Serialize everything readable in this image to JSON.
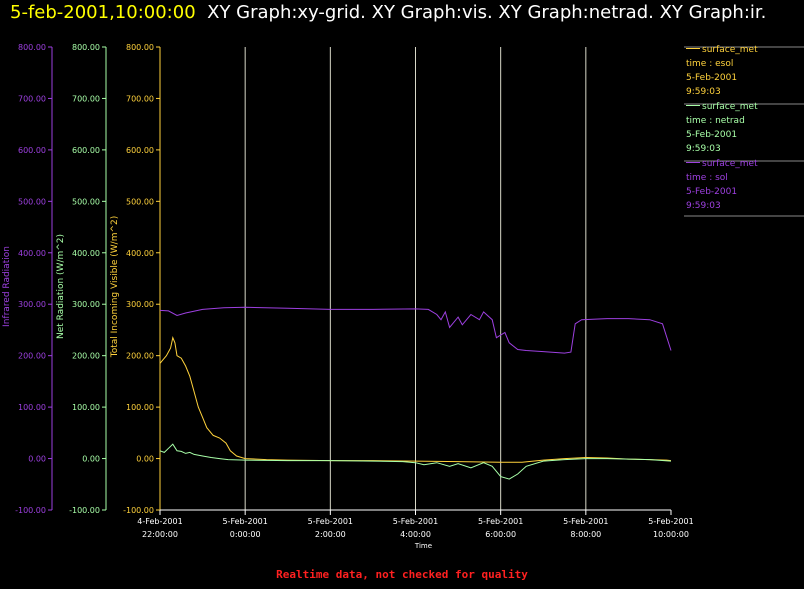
{
  "header": {
    "date_time": "5-feb-2001,10:00:00",
    "graphs": "XY Graph:xy-grid.  XY Graph:vis.  XY Graph:netrad.  XY Graph:ir."
  },
  "footer": {
    "notice": "Realtime data, not checked for quality"
  },
  "colors": {
    "ir": "#9d40e0",
    "netrad": "#a8ffa8",
    "vis": "#ffd23c",
    "grid": "#d8d8c8",
    "axis_time": "#ffffff"
  },
  "legend": [
    {
      "name": "surface_met",
      "lines": [
        "time : esol",
        "5-Feb-2001",
        "9:59:03"
      ],
      "color": "#ffd23c"
    },
    {
      "name": "surface_met",
      "lines": [
        "time : netrad",
        "5-Feb-2001",
        "9:59:03"
      ],
      "color": "#a8ffa8"
    },
    {
      "name": "surface_met",
      "lines": [
        "time : sol",
        "5-Feb-2001",
        "9:59:03"
      ],
      "color": "#9d40e0"
    }
  ],
  "chart_data": {
    "type": "line",
    "title": "",
    "xlabel": "Time",
    "x_ticks": [
      {
        "l1": "4-Feb-2001",
        "l2": "22:00:00",
        "h": -2
      },
      {
        "l1": "5-Feb-2001",
        "l2": "0:00:00",
        "h": 0
      },
      {
        "l1": "5-Feb-2001",
        "l2": "2:00:00",
        "h": 2
      },
      {
        "l1": "5-Feb-2001",
        "l2": "4:00:00",
        "h": 4
      },
      {
        "l1": "5-Feb-2001",
        "l2": "6:00:00",
        "h": 6
      },
      {
        "l1": "5-Feb-2001",
        "l2": "8:00:00",
        "h": 8
      },
      {
        "l1": "5-Feb-2001",
        "l2": "10:00:00",
        "h": 10
      }
    ],
    "xlim_hours": [
      -2,
      10
    ],
    "y_axes": [
      {
        "key": "ir",
        "label": "Infrared Radiation",
        "ylim": [
          -100,
          800
        ],
        "ticks": [
          "800.00",
          "700.00",
          "600.00",
          "500.00",
          "400.00",
          "300.00",
          "200.00",
          "100.00",
          "0.00",
          "-100.00"
        ]
      },
      {
        "key": "netrad",
        "label": "Net Radiation (W/m^2)",
        "ylim": [
          -100,
          800
        ],
        "ticks": [
          "800.00",
          "700.00",
          "600.00",
          "500.00",
          "400.00",
          "300.00",
          "200.00",
          "100.00",
          "0.00",
          "-100.00"
        ]
      },
      {
        "key": "vis",
        "label": "Total Incoming Visible (W/m^2)",
        "ylim": [
          -100,
          800
        ],
        "ticks": [
          "800.00",
          "700.00",
          "600.00",
          "500.00",
          "400.00",
          "300.00",
          "200.00",
          "100.00",
          "0.00",
          "-100.00"
        ]
      }
    ],
    "grid": true,
    "legend_position": "right",
    "series": [
      {
        "key": "vis",
        "name": "surface_met esol",
        "points": [
          [
            -2,
            185
          ],
          [
            -1.95,
            190
          ],
          [
            -1.85,
            200
          ],
          [
            -1.75,
            215
          ],
          [
            -1.7,
            235
          ],
          [
            -1.65,
            225
          ],
          [
            -1.6,
            200
          ],
          [
            -1.5,
            195
          ],
          [
            -1.4,
            180
          ],
          [
            -1.3,
            160
          ],
          [
            -1.2,
            130
          ],
          [
            -1.1,
            100
          ],
          [
            -1.0,
            80
          ],
          [
            -0.9,
            60
          ],
          [
            -0.75,
            45
          ],
          [
            -0.6,
            40
          ],
          [
            -0.45,
            30
          ],
          [
            -0.35,
            15
          ],
          [
            -0.2,
            5
          ],
          [
            0,
            0
          ],
          [
            0.5,
            -2
          ],
          [
            1,
            -3
          ],
          [
            2,
            -4
          ],
          [
            3,
            -4
          ],
          [
            4,
            -5
          ],
          [
            5,
            -6
          ],
          [
            6,
            -7
          ],
          [
            6.5,
            -7
          ],
          [
            7,
            -3
          ],
          [
            7.5,
            0
          ],
          [
            8,
            2
          ],
          [
            8.5,
            1
          ],
          [
            9,
            -1
          ],
          [
            9.5,
            -2
          ],
          [
            9.9,
            -3
          ],
          [
            10,
            -4
          ]
        ]
      },
      {
        "key": "netrad",
        "name": "surface_met netrad",
        "points": [
          [
            -2,
            15
          ],
          [
            -1.9,
            12
          ],
          [
            -1.8,
            20
          ],
          [
            -1.7,
            28
          ],
          [
            -1.6,
            15
          ],
          [
            -1.5,
            14
          ],
          [
            -1.4,
            10
          ],
          [
            -1.3,
            12
          ],
          [
            -1.2,
            8
          ],
          [
            -1.0,
            5
          ],
          [
            -0.8,
            2
          ],
          [
            -0.6,
            0
          ],
          [
            -0.4,
            -2
          ],
          [
            0,
            -3
          ],
          [
            1,
            -4
          ],
          [
            2,
            -4
          ],
          [
            3,
            -5
          ],
          [
            3.7,
            -6
          ],
          [
            4,
            -8
          ],
          [
            4.2,
            -12
          ],
          [
            4.5,
            -8
          ],
          [
            4.8,
            -15
          ],
          [
            5,
            -10
          ],
          [
            5.3,
            -18
          ],
          [
            5.6,
            -8
          ],
          [
            5.8,
            -15
          ],
          [
            6,
            -35
          ],
          [
            6.2,
            -40
          ],
          [
            6.4,
            -30
          ],
          [
            6.6,
            -15
          ],
          [
            7,
            -5
          ],
          [
            7.5,
            -2
          ],
          [
            8,
            0
          ],
          [
            8.5,
            0
          ],
          [
            9,
            -1
          ],
          [
            9.5,
            -2
          ],
          [
            10,
            -5
          ]
        ]
      },
      {
        "key": "ir",
        "name": "surface_met sol",
        "points": [
          [
            -2,
            288
          ],
          [
            -1.8,
            287
          ],
          [
            -1.6,
            278
          ],
          [
            -1.4,
            283
          ],
          [
            -1.0,
            290
          ],
          [
            -0.5,
            293
          ],
          [
            0,
            294
          ],
          [
            1,
            292
          ],
          [
            2,
            290
          ],
          [
            3,
            290
          ],
          [
            4,
            291
          ],
          [
            4.3,
            290
          ],
          [
            4.5,
            280
          ],
          [
            4.6,
            270
          ],
          [
            4.7,
            285
          ],
          [
            4.8,
            255
          ],
          [
            5.0,
            275
          ],
          [
            5.1,
            260
          ],
          [
            5.3,
            280
          ],
          [
            5.5,
            270
          ],
          [
            5.6,
            285
          ],
          [
            5.8,
            270
          ],
          [
            5.9,
            235
          ],
          [
            6.1,
            245
          ],
          [
            6.2,
            225
          ],
          [
            6.4,
            212
          ],
          [
            6.6,
            210
          ],
          [
            7,
            208
          ],
          [
            7.5,
            205
          ],
          [
            7.65,
            207
          ],
          [
            7.75,
            262
          ],
          [
            7.9,
            270
          ],
          [
            8.5,
            272
          ],
          [
            9,
            272
          ],
          [
            9.5,
            270
          ],
          [
            9.8,
            262
          ],
          [
            10,
            210
          ]
        ]
      }
    ]
  }
}
